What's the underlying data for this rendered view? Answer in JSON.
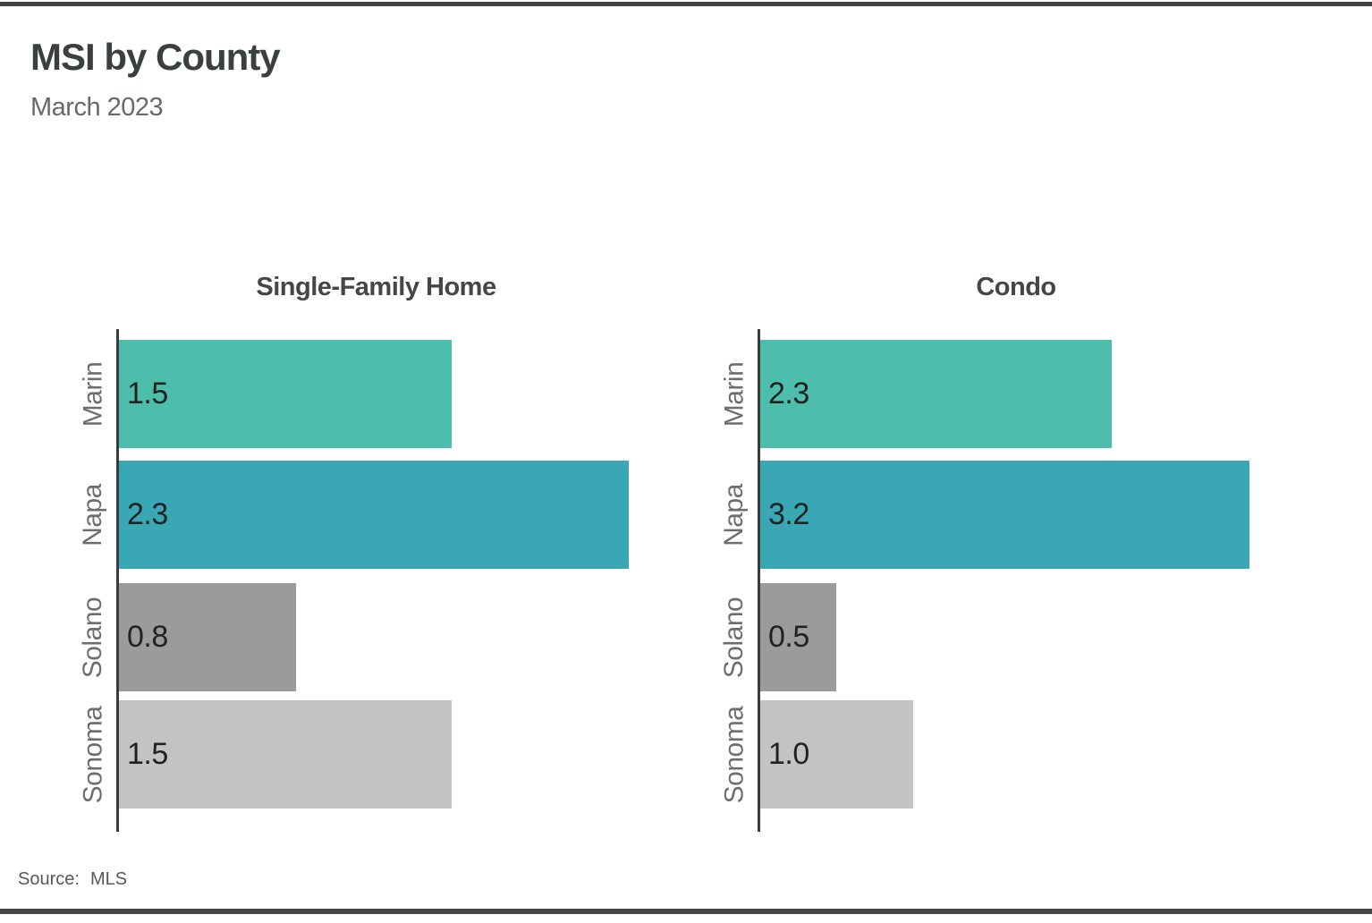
{
  "page": {
    "title": "MSI by County",
    "subtitle": "March 2023",
    "source_label": "Source:",
    "source_value": "MLS"
  },
  "colors": {
    "rule": "#454545",
    "axis": "#3b3b3b",
    "marin": "#4DBEAB",
    "napa": "#3AA7B4",
    "solano": "#9B9B9B",
    "sonoma": "#C3C3C3"
  },
  "chart_data": [
    {
      "type": "bar",
      "orientation": "horizontal",
      "title": "Single-Family Home",
      "categories": [
        "Marin",
        "Napa",
        "Solano",
        "Sonoma"
      ],
      "values": [
        1.5,
        2.3,
        0.8,
        1.5
      ],
      "value_labels": [
        "1.5",
        "2.3",
        "0.8",
        "1.5"
      ],
      "bar_colors": [
        "#4DBEAB",
        "#3AA7B4",
        "#9B9B9B",
        "#C3C3C3"
      ],
      "xlim": [
        0,
        2.54
      ],
      "grid": false,
      "legend": "none",
      "value_label_position": "inside-left",
      "category_axis_side": "left"
    },
    {
      "type": "bar",
      "orientation": "horizontal",
      "title": "Condo",
      "categories": [
        "Marin",
        "Napa",
        "Solano",
        "Sonoma"
      ],
      "values": [
        2.3,
        3.2,
        0.5,
        1.0
      ],
      "value_labels": [
        "2.3",
        "3.2",
        "0.5",
        "1.0"
      ],
      "bar_colors": [
        "#4DBEAB",
        "#3AA7B4",
        "#9B9B9B",
        "#C3C3C3"
      ],
      "xlim": [
        0,
        3.67
      ],
      "grid": false,
      "legend": "none",
      "value_label_position": "inside-left",
      "category_axis_side": "left"
    }
  ]
}
